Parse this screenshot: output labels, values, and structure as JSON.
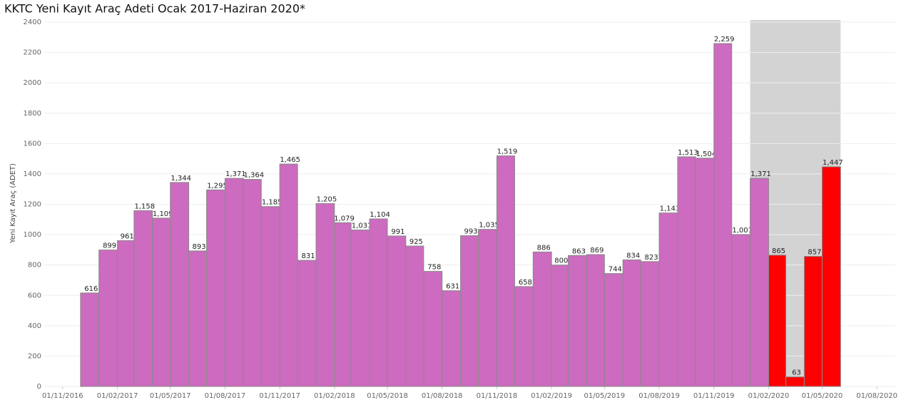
{
  "chart_data": {
    "type": "bar",
    "title": "KKTC Yeni Kayıt Araç Adeti Ocak 2017-Haziran 2020*",
    "y_label": "Yeni Kayıt Araç (ADET)",
    "x": [
      "01/01/2017",
      "01/02/2017",
      "01/03/2017",
      "01/04/2017",
      "01/05/2017",
      "01/06/2017",
      "01/07/2017",
      "01/08/2017",
      "01/09/2017",
      "01/10/2017",
      "01/11/2017",
      "01/12/2017",
      "01/01/2018",
      "01/02/2018",
      "01/03/2018",
      "01/04/2018",
      "01/05/2018",
      "01/06/2018",
      "01/07/2018",
      "01/08/2018",
      "01/09/2018",
      "01/10/2018",
      "01/11/2018",
      "01/12/2018",
      "01/01/2019",
      "01/02/2019",
      "01/03/2019",
      "01/04/2019",
      "01/05/2019",
      "01/06/2019",
      "01/07/2019",
      "01/08/2019",
      "01/09/2019",
      "01/10/2019",
      "01/11/2019",
      "01/12/2019",
      "01/01/2020",
      "01/02/2020",
      "01/03/2020",
      "01/04/2020",
      "01/05/2020",
      "01/06/2020"
    ],
    "values": [
      616,
      899,
      961,
      1158,
      1109,
      1344,
      893,
      1295,
      1371,
      1364,
      1185,
      1465,
      831,
      1205,
      1079,
      1031,
      1104,
      991,
      925,
      758,
      631,
      993,
      1035,
      1519,
      658,
      886,
      800,
      863,
      869,
      744,
      834,
      823,
      1143,
      1513,
      1504,
      2259,
      1001,
      1371,
      865,
      63,
      857,
      1447
    ],
    "value_labels": [
      "616",
      "899",
      "961",
      "1,158",
      "1,109",
      "1,344",
      "893",
      "1,295",
      "1,371",
      "1,364",
      "1,185",
      "1,465",
      "831",
      "1,205",
      "1,079",
      "1,031",
      "1,104",
      "991",
      "925",
      "758",
      "631",
      "993",
      "1,035",
      "1,519",
      "658",
      "886",
      "800",
      "863",
      "869",
      "744",
      "834",
      "823",
      "1,143",
      "1,513",
      "1,504",
      "2,259",
      "1,001",
      "1,371",
      "865",
      "63",
      "857",
      "1,447"
    ],
    "colors": [
      "#cc6bbf",
      "#cc6bbf",
      "#cc6bbf",
      "#cc6bbf",
      "#cc6bbf",
      "#cc6bbf",
      "#cc6bbf",
      "#cc6bbf",
      "#cc6bbf",
      "#cc6bbf",
      "#cc6bbf",
      "#cc6bbf",
      "#cc6bbf",
      "#cc6bbf",
      "#cc6bbf",
      "#cc6bbf",
      "#cc6bbf",
      "#cc6bbf",
      "#cc6bbf",
      "#cc6bbf",
      "#cc6bbf",
      "#cc6bbf",
      "#cc6bbf",
      "#cc6bbf",
      "#cc6bbf",
      "#cc6bbf",
      "#cc6bbf",
      "#cc6bbf",
      "#cc6bbf",
      "#cc6bbf",
      "#cc6bbf",
      "#cc6bbf",
      "#cc6bbf",
      "#cc6bbf",
      "#cc6bbf",
      "#cc6bbf",
      "#cc6bbf",
      "#cc6bbf",
      "#ff0000",
      "#ff0000",
      "#ff0000",
      "#ff0000"
    ],
    "shaded_range": [
      "01/02/2020",
      "01/06/2020"
    ],
    "xlim": [
      "01/10/2016",
      "01/09/2020"
    ],
    "xticks": [
      "01/11/2016",
      "01/02/2017",
      "01/05/2017",
      "01/08/2017",
      "01/11/2017",
      "01/02/2018",
      "01/05/2018",
      "01/08/2018",
      "01/11/2018",
      "01/02/2019",
      "01/05/2019",
      "01/08/2019",
      "01/11/2019",
      "01/02/2020",
      "01/05/2020",
      "01/08/2020"
    ],
    "ylim": [
      0,
      2400
    ],
    "yticks": [
      0,
      200,
      400,
      600,
      800,
      1000,
      1200,
      1400,
      1600,
      1800,
      2000,
      2200,
      2400
    ],
    "grid": true
  }
}
